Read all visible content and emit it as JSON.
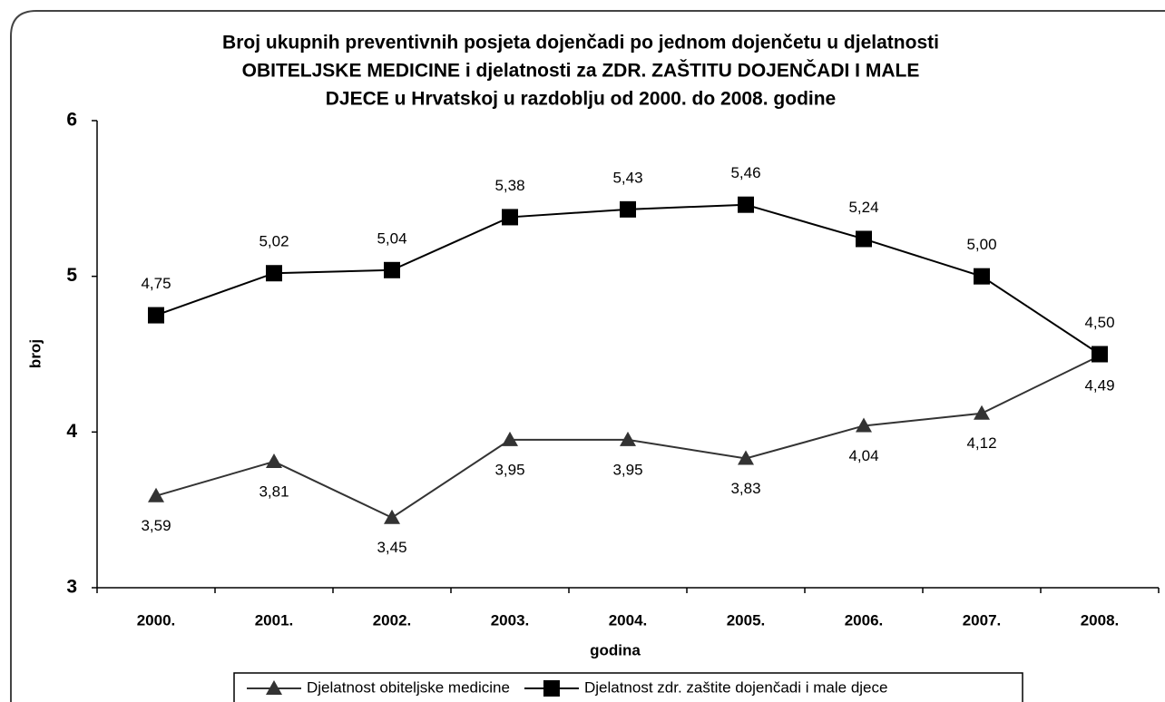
{
  "chart_data": {
    "type": "line",
    "title": [
      "Broj ukupnih preventivnih posjeta dojenčadi po jednom dojenčetu u djelatnosti",
      "OBITELJSKE MEDICINE i djelatnosti za ZDR. ZAŠTITU DOJENČADI I MALE",
      "DJECE u Hrvatskoj u razdoblju od 2000. do 2008. godine"
    ],
    "xlabel": "godina",
    "ylabel": "broj",
    "categories": [
      "2000.",
      "2001.",
      "2002.",
      "2003.",
      "2004.",
      "2005.",
      "2006.",
      "2007.",
      "2008."
    ],
    "ylim": [
      3,
      6
    ],
    "yticks": [
      3,
      4,
      5,
      6
    ],
    "legend": "bottom",
    "series": [
      {
        "name": "Djelatnost obiteljske medicine",
        "color": "#333333",
        "marker": "triangle",
        "values": [
          3.59,
          3.81,
          3.45,
          3.95,
          3.95,
          3.83,
          4.04,
          4.12,
          4.49
        ],
        "value_labels": [
          "3,59",
          "3,81",
          "3,45",
          "3,95",
          "3,95",
          "3,83",
          "4,04",
          "4,12",
          "4,49"
        ]
      },
      {
        "name": "Djelatnost zdr. zaštite dojenčadi i male djece",
        "color": "#000000",
        "marker": "square",
        "values": [
          4.75,
          5.02,
          5.04,
          5.38,
          5.43,
          5.46,
          5.24,
          5.0,
          4.5
        ],
        "value_labels": [
          "4,75",
          "5,02",
          "5,04",
          "5,38",
          "5,43",
          "5,46",
          "5,24",
          "5,00",
          "4,50"
        ]
      }
    ]
  }
}
